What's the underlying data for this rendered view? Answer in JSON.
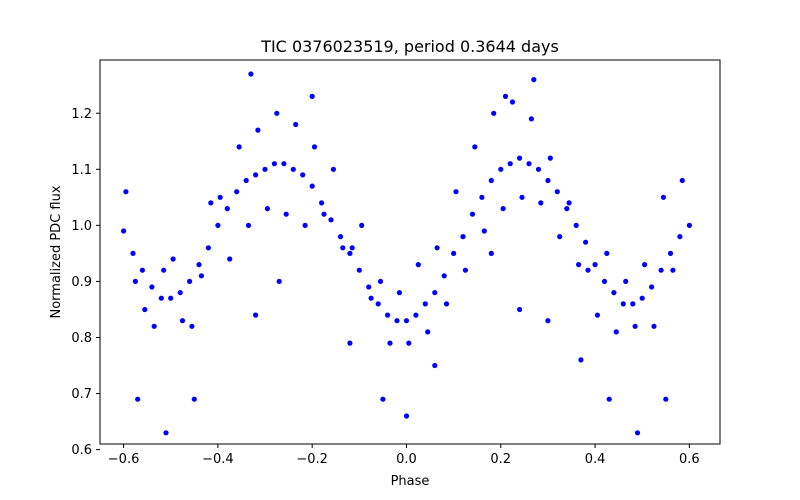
{
  "chart_data": {
    "type": "scatter",
    "title": "TIC 0376023519, period 0.3644 days",
    "xlabel": "Phase",
    "ylabel": "Normalized PDC flux",
    "xlim": [
      -0.65,
      0.665
    ],
    "ylim": [
      0.61,
      1.295
    ],
    "xticks": [
      -0.6,
      -0.4,
      -0.2,
      0.0,
      0.2,
      0.4,
      0.6
    ],
    "xtick_labels": [
      "−0.6",
      "−0.4",
      "−0.2",
      "0.0",
      "0.2",
      "0.4",
      "0.6"
    ],
    "yticks": [
      0.6,
      0.7,
      0.8,
      0.9,
      1.0,
      1.1,
      1.2
    ],
    "ytick_labels": [
      "0.6",
      "0.7",
      "0.8",
      "0.9",
      "1.0",
      "1.1",
      "1.2"
    ],
    "grid": false,
    "marker_color": "#0000ff",
    "series": [
      {
        "x": [
          -0.6,
          -0.58,
          -0.56,
          -0.54,
          -0.52,
          -0.5,
          -0.48,
          -0.46,
          -0.44,
          -0.42,
          -0.4,
          -0.38,
          -0.36,
          -0.34,
          -0.32,
          -0.3,
          -0.28,
          -0.26,
          -0.24,
          -0.22,
          -0.2,
          -0.18,
          -0.16,
          -0.14,
          -0.12,
          -0.1,
          -0.08,
          -0.06,
          -0.04,
          -0.02,
          0.0,
          0.02,
          0.04,
          0.06,
          0.08,
          0.1,
          0.12,
          0.14,
          0.16,
          0.18,
          0.2,
          0.22,
          0.24,
          0.26,
          0.28,
          0.3,
          0.32,
          0.34,
          0.36,
          0.38,
          0.4,
          0.42,
          0.44,
          0.46,
          0.48,
          0.5,
          0.52,
          0.54,
          0.56,
          0.58,
          0.6,
          -0.595,
          -0.575,
          -0.555,
          -0.535,
          -0.515,
          -0.495,
          -0.475,
          -0.455,
          -0.435,
          -0.415,
          -0.395,
          -0.375,
          -0.355,
          -0.335,
          -0.315,
          -0.295,
          -0.275,
          -0.255,
          -0.235,
          -0.215,
          -0.195,
          -0.175,
          -0.155,
          -0.135,
          -0.115,
          -0.095,
          -0.075,
          -0.055,
          -0.035,
          -0.015,
          0.005,
          0.025,
          0.045,
          0.065,
          0.085,
          0.105,
          0.125,
          0.145,
          0.165,
          0.185,
          0.205,
          0.225,
          0.245,
          0.265,
          0.285,
          0.305,
          0.325,
          0.345,
          0.365,
          0.385,
          0.405,
          0.425,
          0.445,
          0.465,
          0.485,
          0.505,
          0.525,
          0.545,
          0.565,
          0.585,
          -0.57,
          -0.51,
          -0.45,
          -0.32,
          -0.12,
          -0.05,
          0.0,
          0.06,
          0.24,
          0.37,
          0.43,
          0.49,
          0.55,
          -0.27,
          0.18,
          0.3,
          -0.33,
          -0.2,
          0.27,
          0.21
        ],
        "y": [
          0.99,
          0.95,
          0.92,
          0.89,
          0.87,
          0.87,
          0.88,
          0.9,
          0.93,
          0.96,
          1.0,
          1.03,
          1.06,
          1.08,
          1.09,
          1.1,
          1.11,
          1.11,
          1.1,
          1.09,
          1.07,
          1.04,
          1.01,
          0.98,
          0.95,
          0.92,
          0.89,
          0.86,
          0.84,
          0.83,
          0.83,
          0.84,
          0.86,
          0.88,
          0.91,
          0.95,
          0.98,
          1.02,
          1.05,
          1.08,
          1.1,
          1.11,
          1.12,
          1.11,
          1.1,
          1.08,
          1.06,
          1.03,
          1.0,
          0.97,
          0.93,
          0.9,
          0.88,
          0.86,
          0.86,
          0.87,
          0.89,
          0.92,
          0.95,
          0.98,
          1.0,
          1.06,
          0.9,
          0.85,
          0.82,
          0.92,
          0.94,
          0.83,
          0.82,
          0.91,
          1.04,
          1.05,
          0.94,
          1.14,
          1.0,
          1.17,
          1.03,
          1.2,
          1.02,
          1.18,
          1.0,
          1.14,
          1.02,
          1.1,
          0.96,
          0.96,
          1.0,
          0.87,
          0.9,
          0.79,
          0.88,
          0.79,
          0.93,
          0.81,
          0.96,
          0.86,
          1.06,
          0.92,
          1.14,
          0.99,
          1.2,
          1.03,
          1.22,
          1.05,
          1.19,
          1.04,
          1.12,
          0.98,
          1.04,
          0.93,
          0.92,
          0.84,
          0.95,
          0.81,
          0.9,
          0.82,
          0.93,
          0.82,
          1.05,
          0.92,
          1.08,
          0.69,
          0.63,
          0.69,
          0.84,
          0.79,
          0.69,
          0.66,
          0.75,
          0.85,
          0.76,
          0.69,
          0.63,
          0.69,
          0.9,
          0.95,
          0.83,
          1.27,
          1.23,
          1.26,
          1.23
        ]
      }
    ]
  }
}
